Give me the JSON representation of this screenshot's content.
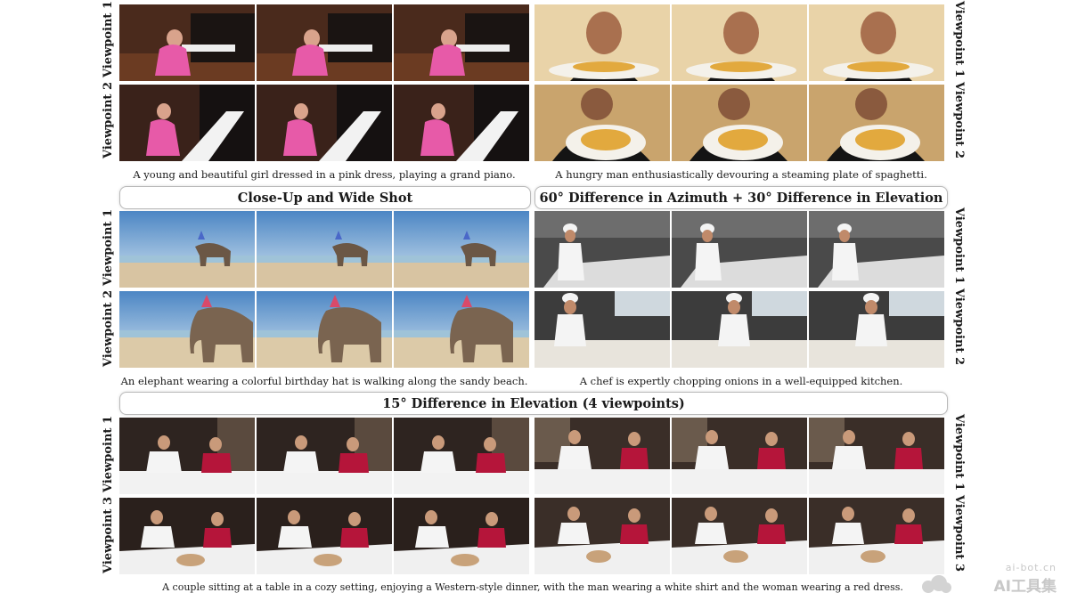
{
  "captions": {
    "piano": "A young and beautiful girl dressed in a pink dress, playing a grand piano.",
    "spaghetti": "A hungry man enthusiastically devouring a steaming plate of spaghetti.",
    "elephant": "An elephant wearing a colorful birthday hat is walking along the sandy beach.",
    "chef": "A chef is expertly chopping onions in a well-equipped kitchen.",
    "couple": "A couple sitting at a table in a cozy setting, enjoying a Western-style dinner, with the man wearing a white shirt and the woman wearing a red dress."
  },
  "headers": {
    "closeup": "Close-Up and Wide Shot",
    "azimuth": "60° Difference in Azimuth + 30° Difference in Elevation",
    "elevation": "15° Difference in Elevation (4 viewpoints)"
  },
  "labels": {
    "vp1": "Viewpoint 1",
    "vp2": "Viewpoint 2",
    "vp3": "Viewpoint 3"
  },
  "watermark": {
    "domain": "ai-bot.cn",
    "name": "AI工具集"
  }
}
